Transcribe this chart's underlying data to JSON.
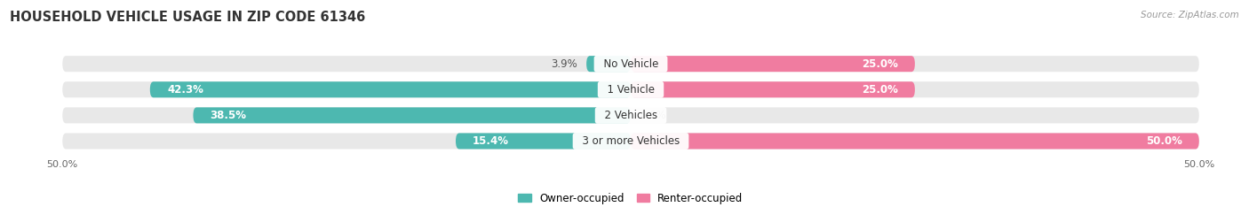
{
  "title": "HOUSEHOLD VEHICLE USAGE IN ZIP CODE 61346",
  "source": "Source: ZipAtlas.com",
  "categories": [
    "No Vehicle",
    "1 Vehicle",
    "2 Vehicles",
    "3 or more Vehicles"
  ],
  "owner_values": [
    3.9,
    42.3,
    38.5,
    15.4
  ],
  "renter_values": [
    25.0,
    25.0,
    0.0,
    50.0
  ],
  "owner_color": "#4db8b0",
  "renter_color": "#f07ca0",
  "bar_bg_color": "#e8e8e8",
  "background_color": "#ffffff",
  "axis_max": 50.0,
  "owner_label": "Owner-occupied",
  "renter_label": "Renter-occupied",
  "bar_height": 0.62,
  "title_fontsize": 10.5,
  "label_fontsize": 8.5,
  "tick_fontsize": 8,
  "source_fontsize": 7.5,
  "category_fontsize": 8.5
}
